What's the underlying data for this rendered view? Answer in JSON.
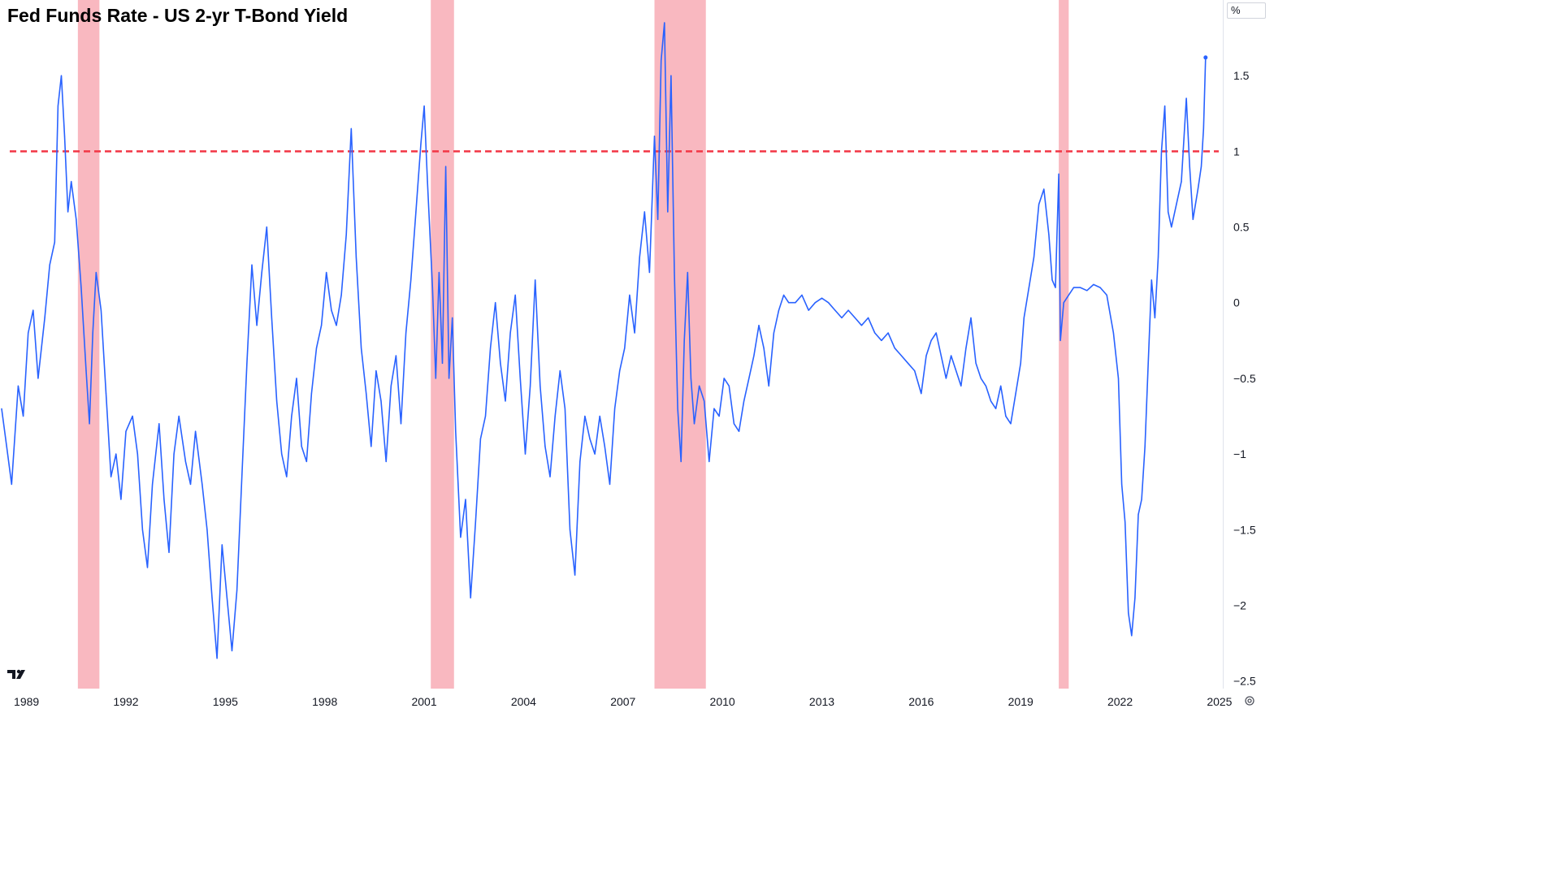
{
  "chart_data": {
    "type": "line",
    "title": "Fed Funds Rate - US 2-yr T-Bond Yield",
    "unit_label": "%",
    "xlabel": "",
    "ylabel": "",
    "x_ticks": [
      "1989",
      "1992",
      "1995",
      "1998",
      "2001",
      "2004",
      "2007",
      "2010",
      "2013",
      "2016",
      "2019",
      "2022",
      "2025"
    ],
    "y_ticks": [
      "1.5",
      "1",
      "0.5",
      "0",
      "−0.5",
      "−1",
      "−1.5",
      "−2",
      "−2.5"
    ],
    "y_tick_values": [
      1.5,
      1,
      0.5,
      0,
      -0.5,
      -1,
      -1.5,
      -2,
      -2.5
    ],
    "xlim": [
      1988.2,
      2025.1
    ],
    "ylim": [
      -2.55,
      2.0
    ],
    "grid": false,
    "legend": "none",
    "reference_line": {
      "y": 1.0,
      "style": "dashed",
      "color": "#f23645"
    },
    "recession_bands": [
      {
        "start": 1990.55,
        "end": 1991.2
      },
      {
        "start": 2001.2,
        "end": 2001.9
      },
      {
        "start": 2007.95,
        "end": 2009.5
      },
      {
        "start": 2020.15,
        "end": 2020.45
      }
    ],
    "colors": {
      "line": "#2962ff",
      "band": "#f9b8c0",
      "reference": "#f23645"
    },
    "series": [
      {
        "values": [
          [
            1988.25,
            -0.7
          ],
          [
            1988.4,
            -0.95
          ],
          [
            1988.55,
            -1.2
          ],
          [
            1988.75,
            -0.55
          ],
          [
            1988.9,
            -0.75
          ],
          [
            1989.05,
            -0.2
          ],
          [
            1989.2,
            -0.05
          ],
          [
            1989.35,
            -0.5
          ],
          [
            1989.55,
            -0.1
          ],
          [
            1989.7,
            0.25
          ],
          [
            1989.85,
            0.4
          ],
          [
            1989.95,
            1.3
          ],
          [
            1990.05,
            1.5
          ],
          [
            1990.15,
            1.1
          ],
          [
            1990.25,
            0.6
          ],
          [
            1990.35,
            0.8
          ],
          [
            1990.5,
            0.55
          ],
          [
            1990.65,
            0.1
          ],
          [
            1990.8,
            -0.45
          ],
          [
            1990.9,
            -0.8
          ],
          [
            1991.0,
            -0.2
          ],
          [
            1991.1,
            0.2
          ],
          [
            1991.25,
            -0.05
          ],
          [
            1991.4,
            -0.6
          ],
          [
            1991.55,
            -1.15
          ],
          [
            1991.7,
            -1.0
          ],
          [
            1991.85,
            -1.3
          ],
          [
            1992.0,
            -0.85
          ],
          [
            1992.2,
            -0.75
          ],
          [
            1992.35,
            -1.0
          ],
          [
            1992.5,
            -1.5
          ],
          [
            1992.65,
            -1.75
          ],
          [
            1992.8,
            -1.2
          ],
          [
            1993.0,
            -0.8
          ],
          [
            1993.15,
            -1.3
          ],
          [
            1993.3,
            -1.65
          ],
          [
            1993.45,
            -1.0
          ],
          [
            1993.6,
            -0.75
          ],
          [
            1993.8,
            -1.05
          ],
          [
            1993.95,
            -1.2
          ],
          [
            1994.1,
            -0.85
          ],
          [
            1994.3,
            -1.2
          ],
          [
            1994.45,
            -1.5
          ],
          [
            1994.6,
            -1.95
          ],
          [
            1994.75,
            -2.35
          ],
          [
            1994.9,
            -1.6
          ],
          [
            1995.05,
            -1.95
          ],
          [
            1995.2,
            -2.3
          ],
          [
            1995.35,
            -1.9
          ],
          [
            1995.5,
            -1.15
          ],
          [
            1995.65,
            -0.4
          ],
          [
            1995.8,
            0.25
          ],
          [
            1995.95,
            -0.15
          ],
          [
            1996.1,
            0.2
          ],
          [
            1996.25,
            0.5
          ],
          [
            1996.4,
            -0.1
          ],
          [
            1996.55,
            -0.65
          ],
          [
            1996.7,
            -1.0
          ],
          [
            1996.85,
            -1.15
          ],
          [
            1997.0,
            -0.75
          ],
          [
            1997.15,
            -0.5
          ],
          [
            1997.3,
            -0.95
          ],
          [
            1997.45,
            -1.05
          ],
          [
            1997.6,
            -0.6
          ],
          [
            1997.75,
            -0.3
          ],
          [
            1997.9,
            -0.15
          ],
          [
            1998.05,
            0.2
          ],
          [
            1998.2,
            -0.05
          ],
          [
            1998.35,
            -0.15
          ],
          [
            1998.5,
            0.05
          ],
          [
            1998.65,
            0.45
          ],
          [
            1998.8,
            1.15
          ],
          [
            1998.95,
            0.3
          ],
          [
            1999.1,
            -0.3
          ],
          [
            1999.25,
            -0.6
          ],
          [
            1999.4,
            -0.95
          ],
          [
            1999.55,
            -0.45
          ],
          [
            1999.7,
            -0.65
          ],
          [
            1999.85,
            -1.05
          ],
          [
            2000.0,
            -0.55
          ],
          [
            2000.15,
            -0.35
          ],
          [
            2000.3,
            -0.8
          ],
          [
            2000.45,
            -0.2
          ],
          [
            2000.6,
            0.15
          ],
          [
            2000.75,
            0.6
          ],
          [
            2000.9,
            1.05
          ],
          [
            2001.0,
            1.3
          ],
          [
            2001.1,
            0.8
          ],
          [
            2001.25,
            0.1
          ],
          [
            2001.35,
            -0.5
          ],
          [
            2001.45,
            0.2
          ],
          [
            2001.55,
            -0.4
          ],
          [
            2001.65,
            0.9
          ],
          [
            2001.75,
            -0.5
          ],
          [
            2001.85,
            -0.1
          ],
          [
            2001.95,
            -0.85
          ],
          [
            2002.1,
            -1.55
          ],
          [
            2002.25,
            -1.3
          ],
          [
            2002.4,
            -1.95
          ],
          [
            2002.55,
            -1.45
          ],
          [
            2002.7,
            -0.9
          ],
          [
            2002.85,
            -0.75
          ],
          [
            2003.0,
            -0.3
          ],
          [
            2003.15,
            0.0
          ],
          [
            2003.3,
            -0.4
          ],
          [
            2003.45,
            -0.65
          ],
          [
            2003.6,
            -0.2
          ],
          [
            2003.75,
            0.05
          ],
          [
            2003.9,
            -0.5
          ],
          [
            2004.05,
            -1.0
          ],
          [
            2004.2,
            -0.55
          ],
          [
            2004.35,
            0.15
          ],
          [
            2004.5,
            -0.55
          ],
          [
            2004.65,
            -0.95
          ],
          [
            2004.8,
            -1.15
          ],
          [
            2004.95,
            -0.75
          ],
          [
            2005.1,
            -0.45
          ],
          [
            2005.25,
            -0.7
          ],
          [
            2005.4,
            -1.5
          ],
          [
            2005.55,
            -1.8
          ],
          [
            2005.7,
            -1.05
          ],
          [
            2005.85,
            -0.75
          ],
          [
            2006.0,
            -0.9
          ],
          [
            2006.15,
            -1.0
          ],
          [
            2006.3,
            -0.75
          ],
          [
            2006.45,
            -0.95
          ],
          [
            2006.6,
            -1.2
          ],
          [
            2006.75,
            -0.7
          ],
          [
            2006.9,
            -0.45
          ],
          [
            2007.05,
            -0.3
          ],
          [
            2007.2,
            0.05
          ],
          [
            2007.35,
            -0.2
          ],
          [
            2007.5,
            0.3
          ],
          [
            2007.65,
            0.6
          ],
          [
            2007.8,
            0.2
          ],
          [
            2007.95,
            1.1
          ],
          [
            2008.05,
            0.55
          ],
          [
            2008.15,
            1.6
          ],
          [
            2008.25,
            1.85
          ],
          [
            2008.35,
            0.6
          ],
          [
            2008.45,
            1.5
          ],
          [
            2008.55,
            0.2
          ],
          [
            2008.65,
            -0.7
          ],
          [
            2008.75,
            -1.05
          ],
          [
            2008.85,
            -0.25
          ],
          [
            2008.95,
            0.2
          ],
          [
            2009.05,
            -0.5
          ],
          [
            2009.15,
            -0.8
          ],
          [
            2009.3,
            -0.55
          ],
          [
            2009.45,
            -0.65
          ],
          [
            2009.6,
            -1.05
          ],
          [
            2009.75,
            -0.7
          ],
          [
            2009.9,
            -0.75
          ],
          [
            2010.05,
            -0.5
          ],
          [
            2010.2,
            -0.55
          ],
          [
            2010.35,
            -0.8
          ],
          [
            2010.5,
            -0.85
          ],
          [
            2010.65,
            -0.65
          ],
          [
            2010.8,
            -0.5
          ],
          [
            2010.95,
            -0.35
          ],
          [
            2011.1,
            -0.15
          ],
          [
            2011.25,
            -0.3
          ],
          [
            2011.4,
            -0.55
          ],
          [
            2011.55,
            -0.2
          ],
          [
            2011.7,
            -0.05
          ],
          [
            2011.85,
            0.05
          ],
          [
            2012.0,
            0.0
          ],
          [
            2012.2,
            0.0
          ],
          [
            2012.4,
            0.05
          ],
          [
            2012.6,
            -0.05
          ],
          [
            2012.8,
            0.0
          ],
          [
            2013.0,
            0.03
          ],
          [
            2013.2,
            0.0
          ],
          [
            2013.4,
            -0.05
          ],
          [
            2013.6,
            -0.1
          ],
          [
            2013.8,
            -0.05
          ],
          [
            2014.0,
            -0.1
          ],
          [
            2014.2,
            -0.15
          ],
          [
            2014.4,
            -0.1
          ],
          [
            2014.6,
            -0.2
          ],
          [
            2014.8,
            -0.25
          ],
          [
            2015.0,
            -0.2
          ],
          [
            2015.2,
            -0.3
          ],
          [
            2015.4,
            -0.35
          ],
          [
            2015.6,
            -0.4
          ],
          [
            2015.8,
            -0.45
          ],
          [
            2016.0,
            -0.6
          ],
          [
            2016.15,
            -0.35
          ],
          [
            2016.3,
            -0.25
          ],
          [
            2016.45,
            -0.2
          ],
          [
            2016.6,
            -0.35
          ],
          [
            2016.75,
            -0.5
          ],
          [
            2016.9,
            -0.35
          ],
          [
            2017.05,
            -0.45
          ],
          [
            2017.2,
            -0.55
          ],
          [
            2017.35,
            -0.3
          ],
          [
            2017.5,
            -0.1
          ],
          [
            2017.65,
            -0.4
          ],
          [
            2017.8,
            -0.5
          ],
          [
            2017.95,
            -0.55
          ],
          [
            2018.1,
            -0.65
          ],
          [
            2018.25,
            -0.7
          ],
          [
            2018.4,
            -0.55
          ],
          [
            2018.55,
            -0.75
          ],
          [
            2018.7,
            -0.8
          ],
          [
            2018.85,
            -0.6
          ],
          [
            2019.0,
            -0.4
          ],
          [
            2019.1,
            -0.1
          ],
          [
            2019.25,
            0.1
          ],
          [
            2019.4,
            0.3
          ],
          [
            2019.55,
            0.65
          ],
          [
            2019.7,
            0.75
          ],
          [
            2019.85,
            0.45
          ],
          [
            2019.95,
            0.15
          ],
          [
            2020.05,
            0.1
          ],
          [
            2020.15,
            0.85
          ],
          [
            2020.2,
            -0.25
          ],
          [
            2020.3,
            0.0
          ],
          [
            2020.45,
            0.05
          ],
          [
            2020.6,
            0.1
          ],
          [
            2020.8,
            0.1
          ],
          [
            2021.0,
            0.08
          ],
          [
            2021.2,
            0.12
          ],
          [
            2021.4,
            0.1
          ],
          [
            2021.6,
            0.05
          ],
          [
            2021.8,
            -0.2
          ],
          [
            2021.95,
            -0.5
          ],
          [
            2022.05,
            -1.2
          ],
          [
            2022.15,
            -1.45
          ],
          [
            2022.25,
            -2.05
          ],
          [
            2022.35,
            -2.2
          ],
          [
            2022.45,
            -1.95
          ],
          [
            2022.55,
            -1.4
          ],
          [
            2022.65,
            -1.3
          ],
          [
            2022.75,
            -0.95
          ],
          [
            2022.85,
            -0.4
          ],
          [
            2022.95,
            0.15
          ],
          [
            2023.05,
            -0.1
          ],
          [
            2023.15,
            0.3
          ],
          [
            2023.25,
            1.0
          ],
          [
            2023.35,
            1.3
          ],
          [
            2023.45,
            0.6
          ],
          [
            2023.55,
            0.5
          ],
          [
            2023.7,
            0.65
          ],
          [
            2023.85,
            0.8
          ],
          [
            2024.0,
            1.35
          ],
          [
            2024.1,
            0.9
          ],
          [
            2024.2,
            0.55
          ],
          [
            2024.35,
            0.75
          ],
          [
            2024.45,
            0.9
          ],
          [
            2024.52,
            1.15
          ],
          [
            2024.58,
            1.62
          ]
        ]
      }
    ]
  }
}
